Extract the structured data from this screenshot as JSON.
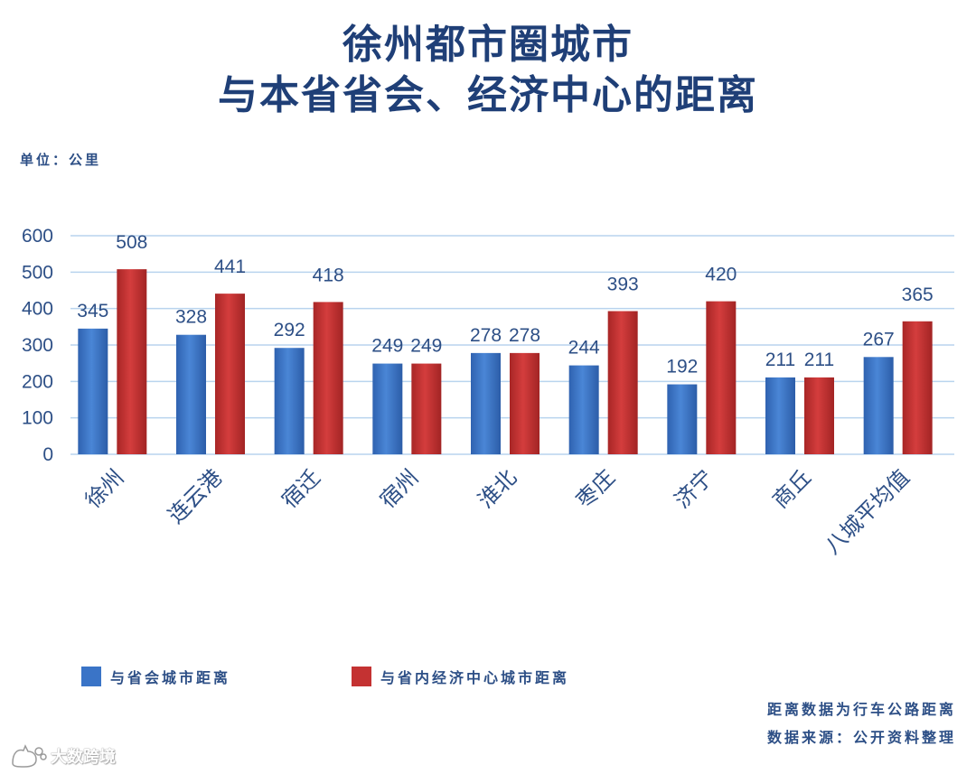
{
  "colors": {
    "blue": "#3a74c7",
    "red": "#c43232",
    "text": "#2d4f86",
    "title": "#1f3f77",
    "grid": "#b9d4ee"
  },
  "header": {
    "title_line1": "徐州都市圈城市",
    "title_line2": "与本省省会、经济中心的距离",
    "unit": "单位：公里"
  },
  "chart_data": {
    "type": "bar",
    "categories": [
      "徐州",
      "连云港",
      "宿迁",
      "宿州",
      "淮北",
      "枣庄",
      "济宁",
      "商丘",
      "八城平均值"
    ],
    "series": [
      {
        "name": "与省会城市距离",
        "values": [
          345,
          328,
          292,
          249,
          278,
          244,
          192,
          211,
          267
        ]
      },
      {
        "name": "与省内经济中心城市距离",
        "values": [
          508,
          441,
          418,
          249,
          278,
          393,
          420,
          211,
          365
        ]
      }
    ],
    "yticks": [
      0,
      100,
      200,
      300,
      400,
      500,
      600
    ],
    "ylim": [
      0,
      600
    ],
    "grid": true,
    "legend_position": "bottom-left"
  },
  "footer": {
    "note1": "距离数据为行车公路距离",
    "note2": "数据来源：公开资料整理",
    "watermark_text": "大数跨境",
    "watermark_icon": "cat-logo-icon"
  }
}
